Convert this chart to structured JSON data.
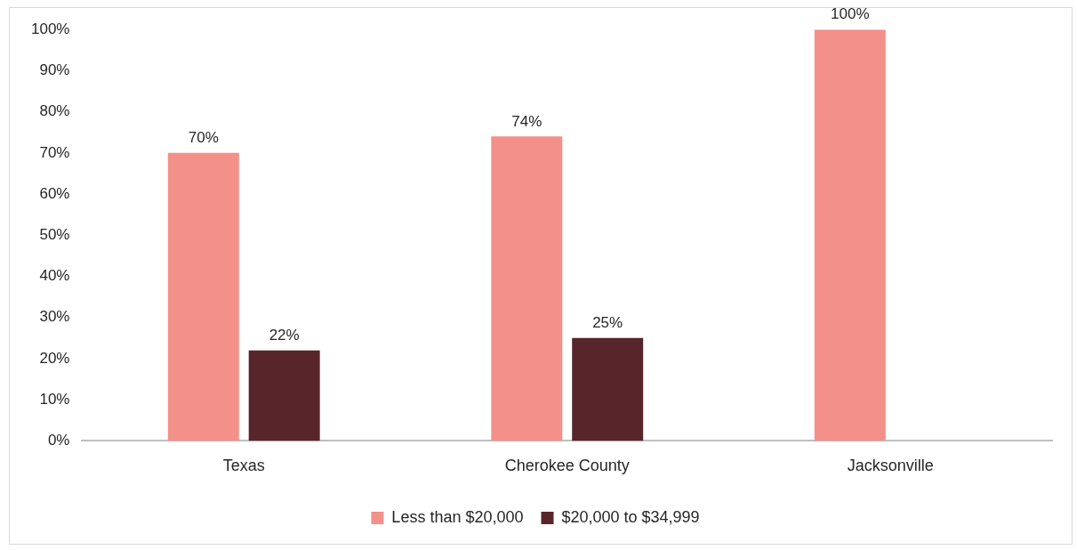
{
  "chart_data": {
    "type": "bar",
    "categories": [
      "Texas",
      "Cherokee County",
      "Jacksonville"
    ],
    "series": [
      {
        "name": "Less than $20,000",
        "color": "#f4908a",
        "values": [
          70,
          74,
          100
        ],
        "value_labels": [
          "70%",
          "74%",
          "100%"
        ]
      },
      {
        "name": "$20,000 to $34,999",
        "color": "#58252a",
        "values": [
          22,
          25,
          null
        ],
        "value_labels": [
          "22%",
          "25%",
          null
        ]
      }
    ],
    "ylim": [
      0,
      100
    ],
    "yticks": [
      {
        "value": 0,
        "label": "0%"
      },
      {
        "value": 10,
        "label": "10%"
      },
      {
        "value": 20,
        "label": "20%"
      },
      {
        "value": 30,
        "label": "30%"
      },
      {
        "value": 40,
        "label": "40%"
      },
      {
        "value": 50,
        "label": "50%"
      },
      {
        "value": 60,
        "label": "60%"
      },
      {
        "value": 70,
        "label": "70%"
      },
      {
        "value": 80,
        "label": "80%"
      },
      {
        "value": 90,
        "label": "90%"
      },
      {
        "value": 100,
        "label": "100%"
      }
    ],
    "grid": false,
    "legend": "bottom"
  }
}
